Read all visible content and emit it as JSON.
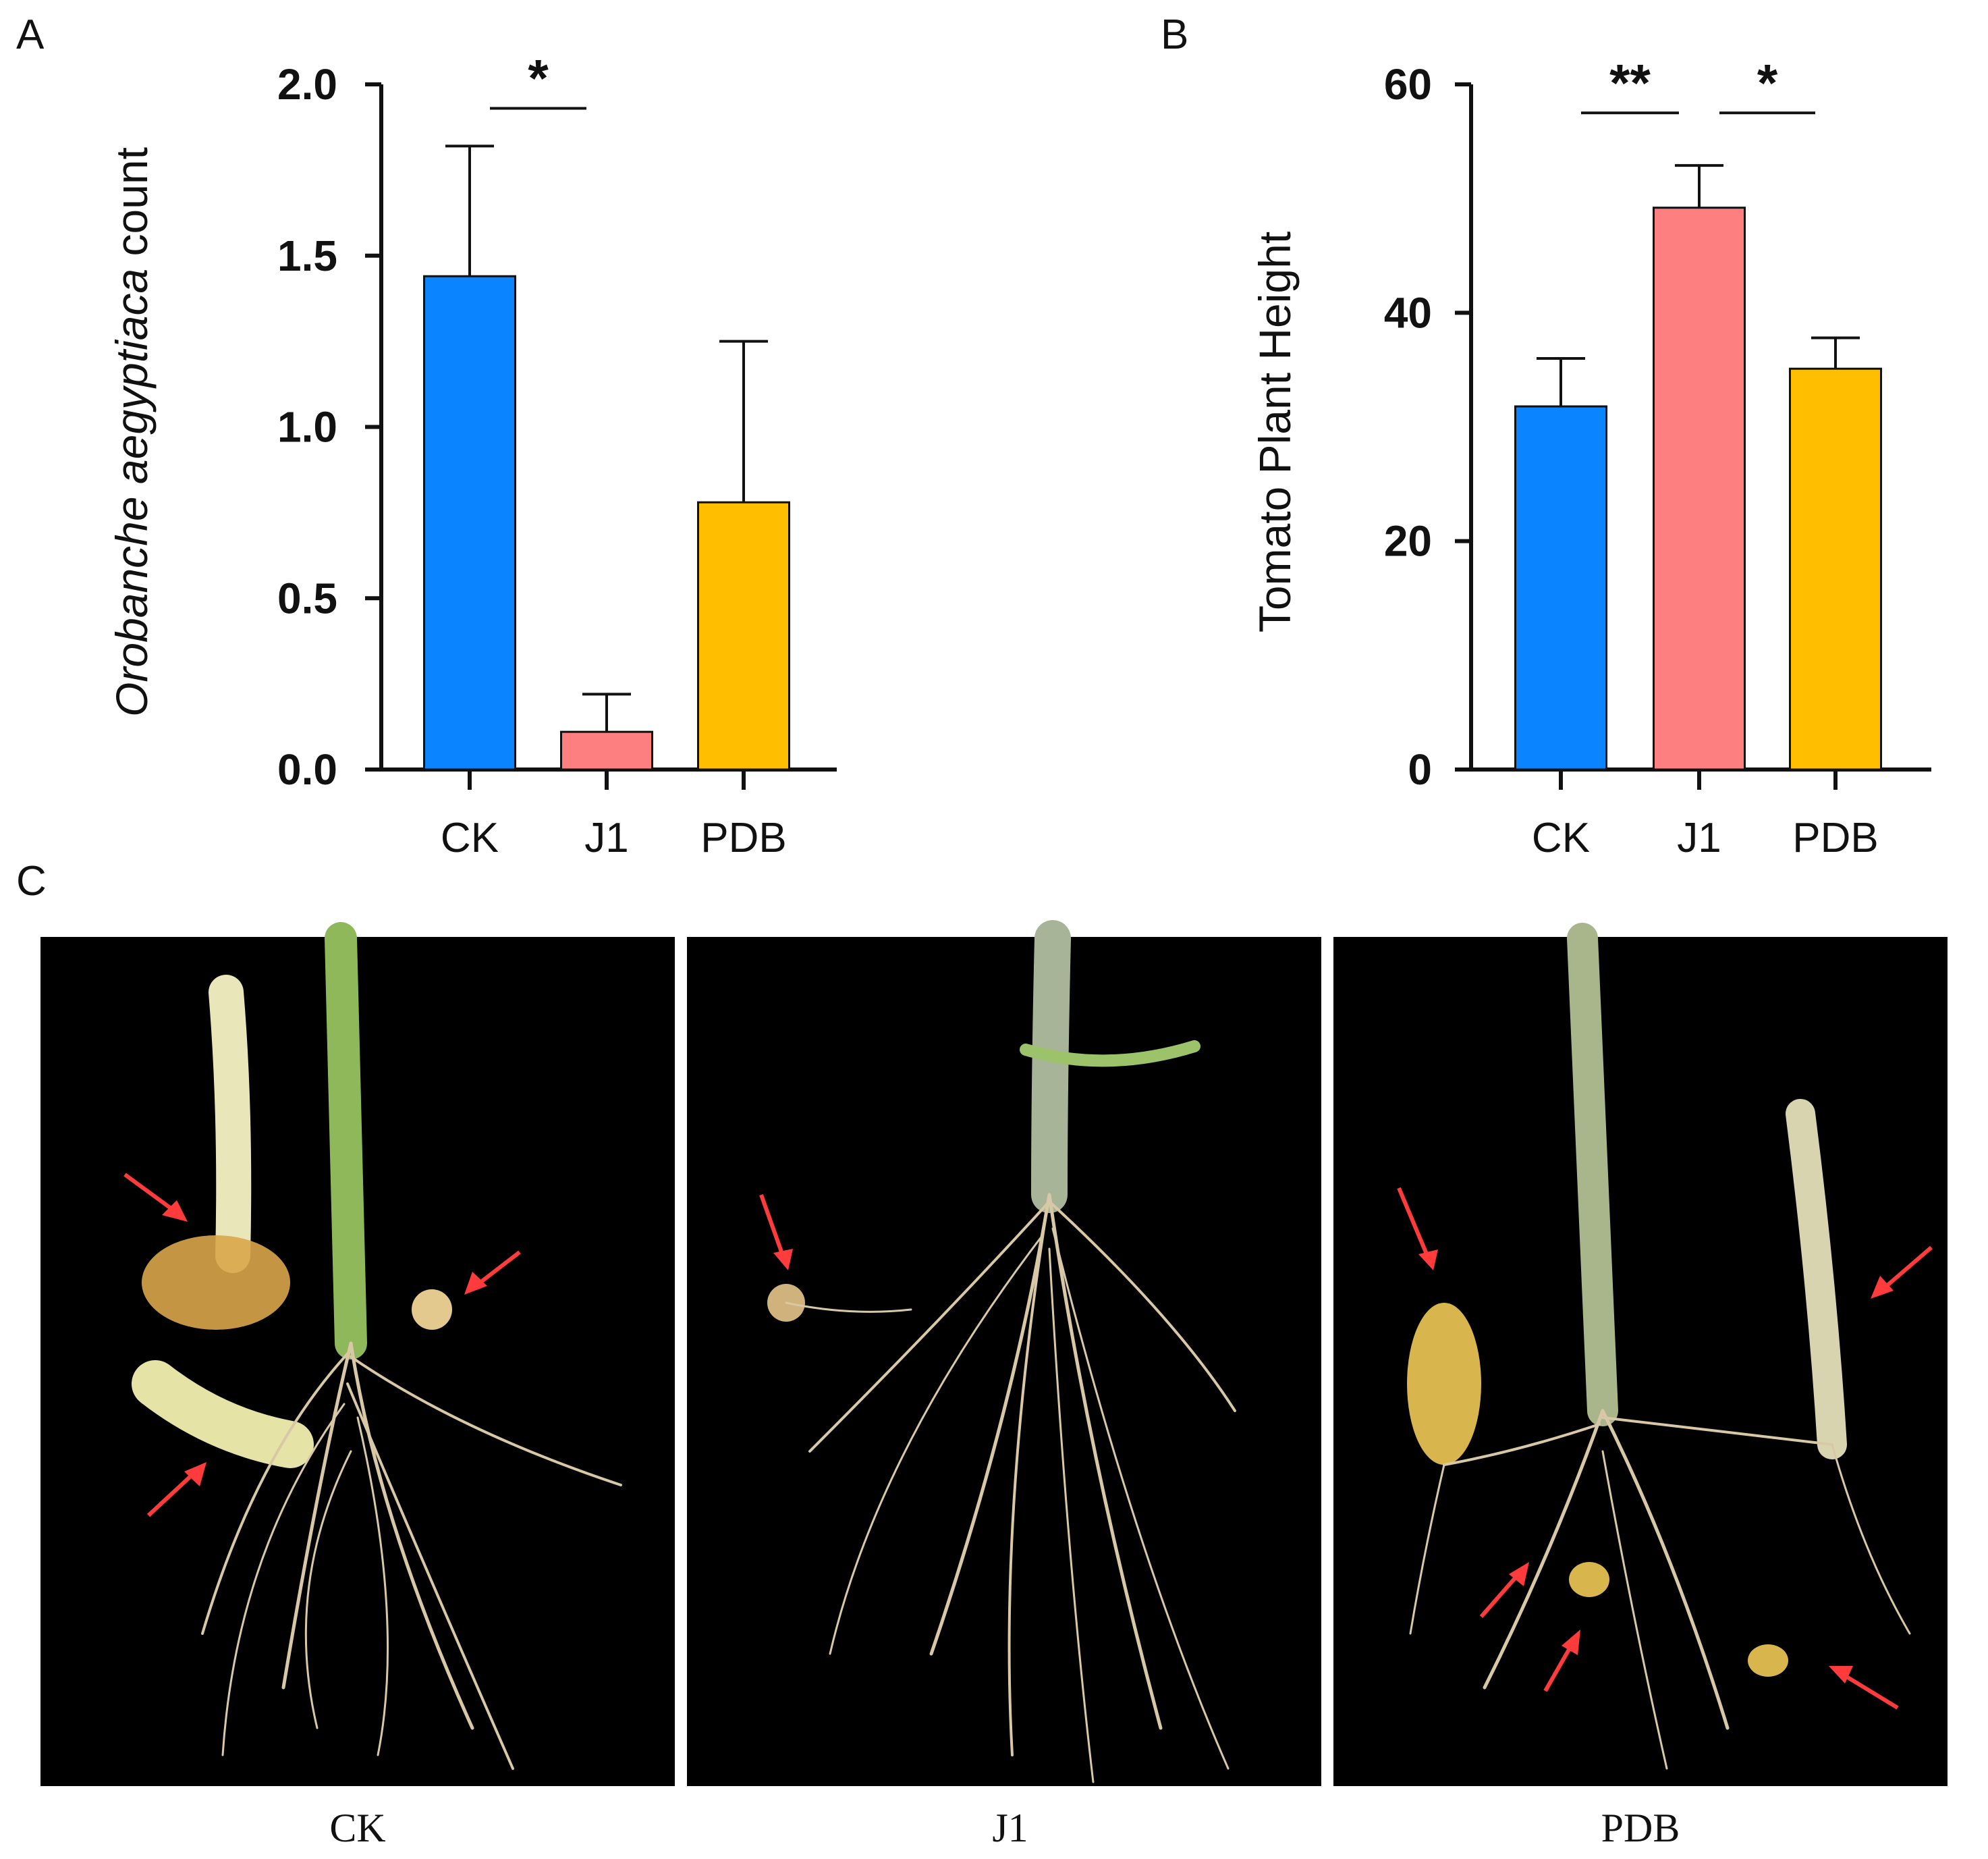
{
  "panel_labels": {
    "a": "A",
    "b": "B",
    "c": "C"
  },
  "chart_data": [
    {
      "type": "bar",
      "panel": "A",
      "categories": [
        "CK",
        "J1",
        "PDB"
      ],
      "values": [
        1.44,
        0.11,
        0.78
      ],
      "errors": [
        0.38,
        0.11,
        0.47
      ],
      "colors": [
        "#0b84ff",
        "#fd7f7f",
        "#ffbf00"
      ],
      "ylabel_italic": "Orobanche aegyptiaca",
      "ylabel_rest": " count",
      "ylim": [
        0,
        2.0
      ],
      "yticks": [
        0.0,
        0.5,
        1.0,
        1.5,
        2.0
      ],
      "ytick_labels": [
        "0.0",
        "0.5",
        "1.0",
        "1.5",
        "2.0"
      ],
      "significance": [
        {
          "from": 0,
          "to": 1,
          "label": "*",
          "level": 1.93
        }
      ]
    },
    {
      "type": "bar",
      "panel": "B",
      "categories": [
        "CK",
        "J1",
        "PDB"
      ],
      "values": [
        31.8,
        49.2,
        35.1
      ],
      "errors": [
        4.2,
        3.7,
        2.7
      ],
      "colors": [
        "#0b84ff",
        "#fd7f7f",
        "#ffbf00"
      ],
      "ylabel": "Tomato Plant Height",
      "ylim": [
        0,
        60
      ],
      "yticks": [
        0,
        20,
        40,
        60
      ],
      "ytick_labels": [
        "0",
        "20",
        "40",
        "60"
      ],
      "significance": [
        {
          "from": 0,
          "to": 1,
          "label": "**",
          "level": 57.5
        },
        {
          "from": 1,
          "to": 2,
          "label": "*",
          "level": 57.5
        }
      ]
    }
  ],
  "photos": {
    "captions": [
      "CK",
      "J1",
      "PDB"
    ],
    "background": "#000000",
    "arrow_color": "#ff3b3b",
    "stem_color": "#8fb85a",
    "root_color": "#d9c8a6",
    "parasite_color": "#d9a64a"
  }
}
